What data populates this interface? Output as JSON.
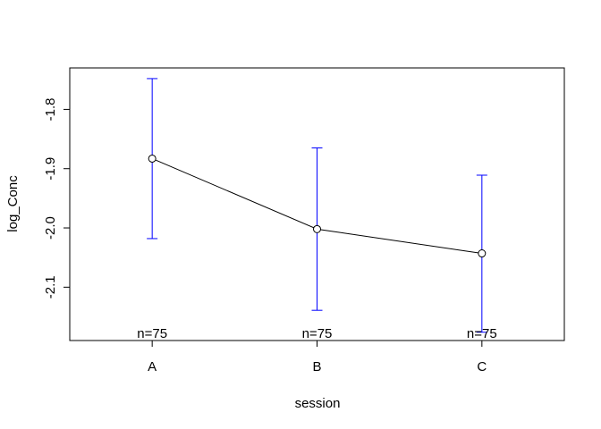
{
  "chart_data": {
    "type": "line",
    "title": "",
    "xlabel": "session",
    "ylabel": "log_Conc",
    "categories": [
      "A",
      "B",
      "C"
    ],
    "ylim": [
      -2.19,
      -1.73
    ],
    "yticks": [
      -1.8,
      -1.9,
      -2.0,
      -2.1
    ],
    "ytick_labels": [
      "-1.8",
      "-1.9",
      "-2.0",
      "-2.1"
    ],
    "grid": false,
    "legend": "none",
    "series": [
      {
        "values": [
          -1.883,
          -2.002,
          -2.043
        ],
        "error_low": [
          -2.018,
          -2.139,
          -2.176
        ],
        "error_high": [
          -1.748,
          -1.865,
          -1.911
        ]
      }
    ],
    "annotations": [
      "n=75",
      "n=75",
      "n=75"
    ],
    "line_color": "#000000",
    "error_bar_color": "#0000ff"
  }
}
